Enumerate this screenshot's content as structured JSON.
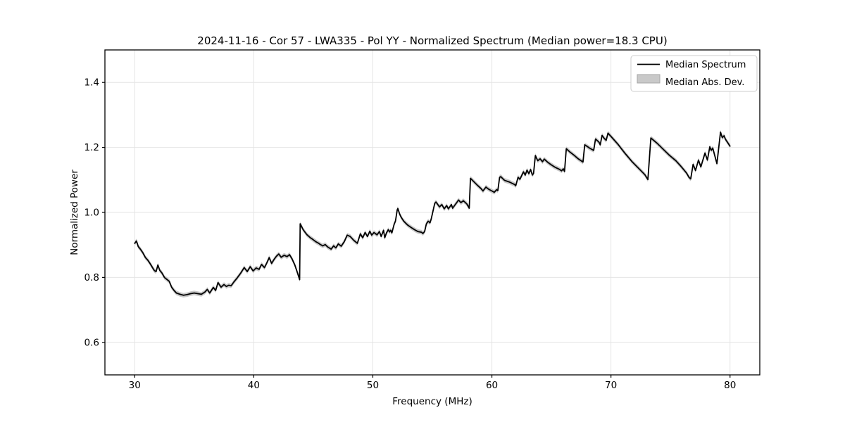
{
  "figure": {
    "title": "2024-11-16 - Cor 57 - LWA335 - Pol YY - Normalized Spectrum (Median power=18.3 CPU)",
    "background_color": "#ffffff",
    "frame_color": "#000000",
    "grid_color": "#e4e4e4"
  },
  "legend": {
    "items": [
      {
        "label": "Median Spectrum",
        "swatch": "line",
        "color": "#000000"
      },
      {
        "label": "Median Abs. Dev.",
        "swatch": "patch",
        "fill": "#c9c9c9",
        "border": "#a6a6a6"
      }
    ]
  },
  "chart_data": {
    "type": "line",
    "title": "2024-11-16 - Cor 57 - LWA335 - Pol YY - Normalized Spectrum (Median power=18.3 CPU)",
    "xlabel": "Frequency (MHz)",
    "ylabel": "Normalized Power",
    "xlim": [
      27.5,
      82.5
    ],
    "ylim": [
      0.5,
      1.5
    ],
    "x_ticks": [
      30,
      40,
      50,
      60,
      70,
      80
    ],
    "x_tick_labels": [
      "30",
      "40",
      "50",
      "60",
      "70",
      "80"
    ],
    "y_ticks": [
      0.6,
      0.8,
      1.0,
      1.2,
      1.4
    ],
    "y_tick_labels": [
      "0.6",
      "0.8",
      "1.0",
      "1.2",
      "1.4"
    ],
    "grid": true,
    "legend_position": "upper right",
    "mad_band_halfwidth": 0.007,
    "series": [
      {
        "name": "Median Spectrum",
        "color": "#000000",
        "points": [
          [
            30.0,
            0.905
          ],
          [
            30.15,
            0.912
          ],
          [
            30.3,
            0.895
          ],
          [
            30.5,
            0.886
          ],
          [
            30.7,
            0.875
          ],
          [
            30.9,
            0.861
          ],
          [
            31.1,
            0.853
          ],
          [
            31.3,
            0.842
          ],
          [
            31.5,
            0.83
          ],
          [
            31.65,
            0.821
          ],
          [
            31.8,
            0.818
          ],
          [
            31.95,
            0.838
          ],
          [
            32.1,
            0.822
          ],
          [
            32.3,
            0.813
          ],
          [
            32.5,
            0.8
          ],
          [
            32.7,
            0.794
          ],
          [
            32.9,
            0.788
          ],
          [
            33.1,
            0.77
          ],
          [
            33.3,
            0.76
          ],
          [
            33.5,
            0.752
          ],
          [
            33.8,
            0.748
          ],
          [
            34.1,
            0.745
          ],
          [
            34.4,
            0.747
          ],
          [
            34.7,
            0.75
          ],
          [
            35.0,
            0.752
          ],
          [
            35.3,
            0.75
          ],
          [
            35.6,
            0.748
          ],
          [
            35.9,
            0.755
          ],
          [
            36.1,
            0.763
          ],
          [
            36.3,
            0.752
          ],
          [
            36.6,
            0.769
          ],
          [
            36.8,
            0.76
          ],
          [
            37.0,
            0.784
          ],
          [
            37.25,
            0.77
          ],
          [
            37.5,
            0.778
          ],
          [
            37.7,
            0.772
          ],
          [
            37.9,
            0.776
          ],
          [
            38.1,
            0.774
          ],
          [
            38.35,
            0.787
          ],
          [
            38.6,
            0.798
          ],
          [
            38.9,
            0.813
          ],
          [
            39.2,
            0.83
          ],
          [
            39.45,
            0.818
          ],
          [
            39.7,
            0.833
          ],
          [
            39.95,
            0.82
          ],
          [
            40.2,
            0.829
          ],
          [
            40.45,
            0.825
          ],
          [
            40.65,
            0.84
          ],
          [
            40.9,
            0.83
          ],
          [
            41.1,
            0.845
          ],
          [
            41.3,
            0.861
          ],
          [
            41.5,
            0.843
          ],
          [
            41.7,
            0.855
          ],
          [
            41.9,
            0.865
          ],
          [
            42.1,
            0.872
          ],
          [
            42.3,
            0.862
          ],
          [
            42.55,
            0.868
          ],
          [
            42.8,
            0.864
          ],
          [
            43.0,
            0.87
          ],
          [
            43.2,
            0.858
          ],
          [
            43.45,
            0.838
          ],
          [
            43.6,
            0.822
          ],
          [
            43.75,
            0.805
          ],
          [
            43.85,
            0.793
          ],
          [
            43.9,
            0.965
          ],
          [
            44.15,
            0.947
          ],
          [
            44.45,
            0.932
          ],
          [
            44.75,
            0.922
          ],
          [
            44.95,
            0.917
          ],
          [
            45.2,
            0.91
          ],
          [
            45.4,
            0.906
          ],
          [
            45.6,
            0.901
          ],
          [
            45.8,
            0.897
          ],
          [
            46.0,
            0.901
          ],
          [
            46.2,
            0.894
          ],
          [
            46.5,
            0.887
          ],
          [
            46.7,
            0.897
          ],
          [
            46.9,
            0.891
          ],
          [
            47.1,
            0.903
          ],
          [
            47.35,
            0.896
          ],
          [
            47.6,
            0.91
          ],
          [
            47.85,
            0.93
          ],
          [
            48.1,
            0.926
          ],
          [
            48.4,
            0.914
          ],
          [
            48.7,
            0.905
          ],
          [
            48.95,
            0.934
          ],
          [
            49.15,
            0.922
          ],
          [
            49.35,
            0.938
          ],
          [
            49.55,
            0.926
          ],
          [
            49.75,
            0.942
          ],
          [
            49.9,
            0.93
          ],
          [
            50.1,
            0.938
          ],
          [
            50.35,
            0.931
          ],
          [
            50.55,
            0.941
          ],
          [
            50.7,
            0.926
          ],
          [
            50.9,
            0.945
          ],
          [
            51.0,
            0.922
          ],
          [
            51.15,
            0.937
          ],
          [
            51.3,
            0.947
          ],
          [
            51.4,
            0.94
          ],
          [
            51.5,
            0.945
          ],
          [
            51.6,
            0.937
          ],
          [
            51.8,
            0.965
          ],
          [
            51.9,
            0.973
          ],
          [
            52.05,
            1.008
          ],
          [
            52.1,
            1.012
          ],
          [
            52.25,
            0.995
          ],
          [
            52.4,
            0.984
          ],
          [
            52.6,
            0.973
          ],
          [
            52.9,
            0.962
          ],
          [
            53.2,
            0.954
          ],
          [
            53.5,
            0.947
          ],
          [
            53.8,
            0.941
          ],
          [
            54.1,
            0.939
          ],
          [
            54.2,
            0.935
          ],
          [
            54.35,
            0.941
          ],
          [
            54.5,
            0.965
          ],
          [
            54.65,
            0.973
          ],
          [
            54.8,
            0.968
          ],
          [
            54.9,
            0.979
          ],
          [
            55.2,
            1.028
          ],
          [
            55.3,
            1.032
          ],
          [
            55.6,
            1.017
          ],
          [
            55.8,
            1.024
          ],
          [
            56.0,
            1.011
          ],
          [
            56.2,
            1.021
          ],
          [
            56.35,
            1.011
          ],
          [
            56.6,
            1.024
          ],
          [
            56.7,
            1.013
          ],
          [
            57.0,
            1.028
          ],
          [
            57.2,
            1.038
          ],
          [
            57.4,
            1.03
          ],
          [
            57.6,
            1.036
          ],
          [
            57.9,
            1.026
          ],
          [
            58.1,
            1.013
          ],
          [
            58.2,
            1.105
          ],
          [
            58.5,
            1.094
          ],
          [
            58.8,
            1.083
          ],
          [
            59.1,
            1.073
          ],
          [
            59.25,
            1.066
          ],
          [
            59.5,
            1.078
          ],
          [
            59.7,
            1.072
          ],
          [
            59.9,
            1.068
          ],
          [
            60.2,
            1.062
          ],
          [
            60.4,
            1.07
          ],
          [
            60.5,
            1.067
          ],
          [
            60.65,
            1.108
          ],
          [
            60.75,
            1.11
          ],
          [
            61.05,
            1.099
          ],
          [
            61.5,
            1.093
          ],
          [
            61.9,
            1.086
          ],
          [
            62.0,
            1.082
          ],
          [
            62.2,
            1.108
          ],
          [
            62.35,
            1.102
          ],
          [
            62.65,
            1.125
          ],
          [
            62.8,
            1.115
          ],
          [
            62.95,
            1.13
          ],
          [
            63.1,
            1.119
          ],
          [
            63.25,
            1.132
          ],
          [
            63.4,
            1.115
          ],
          [
            63.5,
            1.12
          ],
          [
            63.65,
            1.175
          ],
          [
            63.85,
            1.159
          ],
          [
            64.05,
            1.165
          ],
          [
            64.25,
            1.156
          ],
          [
            64.4,
            1.164
          ],
          [
            64.7,
            1.154
          ],
          [
            65.0,
            1.146
          ],
          [
            65.3,
            1.139
          ],
          [
            65.65,
            1.133
          ],
          [
            65.85,
            1.128
          ],
          [
            66.0,
            1.134
          ],
          [
            66.1,
            1.126
          ],
          [
            66.25,
            1.196
          ],
          [
            66.55,
            1.186
          ],
          [
            66.9,
            1.176
          ],
          [
            67.25,
            1.165
          ],
          [
            67.65,
            1.155
          ],
          [
            67.8,
            1.208
          ],
          [
            68.25,
            1.197
          ],
          [
            68.55,
            1.191
          ],
          [
            68.7,
            1.226
          ],
          [
            69.0,
            1.216
          ],
          [
            69.1,
            1.208
          ],
          [
            69.25,
            1.237
          ],
          [
            69.45,
            1.227
          ],
          [
            69.6,
            1.222
          ],
          [
            69.75,
            1.244
          ],
          [
            70.0,
            1.234
          ],
          [
            70.6,
            1.209
          ],
          [
            71.2,
            1.181
          ],
          [
            71.8,
            1.155
          ],
          [
            72.4,
            1.133
          ],
          [
            72.85,
            1.116
          ],
          [
            73.1,
            1.101
          ],
          [
            73.35,
            1.229
          ],
          [
            73.9,
            1.212
          ],
          [
            74.4,
            1.194
          ],
          [
            74.9,
            1.176
          ],
          [
            75.45,
            1.159
          ],
          [
            75.9,
            1.141
          ],
          [
            76.35,
            1.121
          ],
          [
            76.55,
            1.108
          ],
          [
            76.7,
            1.103
          ],
          [
            76.9,
            1.148
          ],
          [
            77.1,
            1.129
          ],
          [
            77.35,
            1.161
          ],
          [
            77.55,
            1.14
          ],
          [
            77.9,
            1.183
          ],
          [
            78.1,
            1.161
          ],
          [
            78.3,
            1.202
          ],
          [
            78.42,
            1.191
          ],
          [
            78.55,
            1.198
          ],
          [
            78.9,
            1.15
          ],
          [
            79.2,
            1.247
          ],
          [
            79.35,
            1.23
          ],
          [
            79.5,
            1.236
          ],
          [
            79.6,
            1.226
          ],
          [
            80.0,
            1.204
          ]
        ]
      },
      {
        "name": "Median Abs. Dev.",
        "type": "band-around-series-0",
        "color": "#c9c9c9"
      }
    ]
  }
}
